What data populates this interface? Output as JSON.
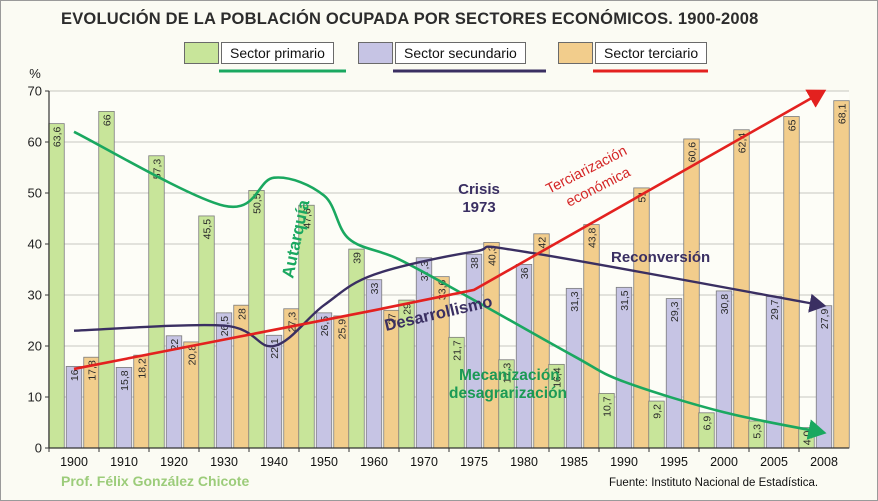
{
  "title": "EVOLUCIÓN DE LA POBLACIÓN OCUPADA POR SECTORES ECONÓMICOS. 1900-2008",
  "legend": [
    {
      "label": "Sector primario",
      "color": "#c8e59a",
      "line_color": "#1aa860"
    },
    {
      "label": "Sector secundario",
      "color": "#c6c4e4",
      "line_color": "#3a2f62"
    },
    {
      "label": "Sector terciario",
      "color": "#f2cd8c",
      "line_color": "#e3211f"
    }
  ],
  "footer": {
    "author": "Prof. Félix González Chicote",
    "source": "Fuente: Instituto Nacional de Estadística."
  },
  "chart_data": {
    "type": "bar",
    "ylabel": "%",
    "ylim": [
      0,
      70
    ],
    "yticks": [
      "0",
      "10",
      "20",
      "30",
      "40",
      "50",
      "60",
      "70"
    ],
    "grid": true,
    "categories": [
      "1900",
      "1910",
      "1920",
      "1930",
      "1940",
      "1950",
      "1960",
      "1970",
      "1975",
      "1980",
      "1985",
      "1990",
      "1995",
      "2000",
      "2005",
      "2008"
    ],
    "series": [
      {
        "name": "Sector primario",
        "color": "#c8e59a",
        "values": [
          63.6,
          66,
          57.3,
          45.5,
          50.5,
          47.6,
          39,
          29,
          21.7,
          17.3,
          16.4,
          10.7,
          9.2,
          6.9,
          5.3,
          4.0
        ],
        "labels": [
          "63,6",
          "66",
          "57,3",
          "45,5",
          "50,5",
          "47,6",
          "39",
          "29",
          "21,7",
          "17,3",
          "16,4",
          "10,7",
          "9,2",
          "6,9",
          "5,3",
          "4,0"
        ]
      },
      {
        "name": "Sector secundario",
        "color": "#c6c4e4",
        "values": [
          16,
          15.8,
          22,
          26.5,
          22.1,
          26.5,
          33,
          37.3,
          38,
          36,
          31.3,
          31.5,
          29.3,
          30.8,
          29.7,
          27.9
        ],
        "labels": [
          "16",
          "15,8",
          "22",
          "26,5",
          "22,1",
          "26,5",
          "33",
          "37,3",
          "38",
          "36",
          "31,3",
          "31,5",
          "29,3",
          "30,8",
          "29,7",
          "27,9"
        ]
      },
      {
        "name": "Sector terciario",
        "color": "#f2cd8c",
        "values": [
          17.8,
          18.2,
          20.8,
          28,
          27.3,
          25.9,
          27,
          33.6,
          40.3,
          42,
          43.8,
          51,
          60.6,
          62.4,
          65,
          68.1
        ],
        "labels": [
          "17,8",
          "18,2",
          "20,8",
          "28",
          "27,3",
          "25,9",
          "27",
          "33,6",
          "40,3",
          "42",
          "43,8",
          "51",
          "60,6",
          "62,4",
          "65",
          "68,1"
        ]
      }
    ],
    "trend_lines": {
      "primario": [
        [
          1900,
          62
        ],
        [
          1930,
          47.5
        ],
        [
          1940,
          53
        ],
        [
          1950,
          49.5
        ],
        [
          1955,
          41
        ],
        [
          1965,
          37
        ],
        [
          1975,
          29
        ],
        [
          1985,
          18
        ],
        [
          1990,
          13
        ],
        [
          2000,
          7
        ],
        [
          2008,
          3
        ]
      ],
      "secundario": [
        [
          1900,
          23
        ],
        [
          1930,
          24
        ],
        [
          1940,
          20
        ],
        [
          1950,
          28
        ],
        [
          1960,
          34
        ],
        [
          1975,
          38.5
        ],
        [
          1980,
          38.5
        ],
        [
          2008,
          27.9
        ]
      ],
      "terciario": [
        [
          1900,
          15.5
        ],
        [
          1960,
          27
        ],
        [
          1975,
          31
        ],
        [
          2008,
          70
        ]
      ]
    },
    "annotations": [
      {
        "text": "Autarquía",
        "color": "#1aa860"
      },
      {
        "text": "Desarrollismo",
        "color": "#3a2f62"
      },
      {
        "text": "Crisis",
        "color": "#3a2f62"
      },
      {
        "text": "1973",
        "color": "#3a2f62"
      },
      {
        "text": "Terciarización",
        "color": "#d42626"
      },
      {
        "text": "económica",
        "color": "#d42626"
      },
      {
        "text": "Reconversión",
        "color": "#3a2f62"
      },
      {
        "text": "Mecanización",
        "color": "#1b9a55"
      },
      {
        "text": "desagrarización",
        "color": "#1b9a55"
      }
    ]
  }
}
